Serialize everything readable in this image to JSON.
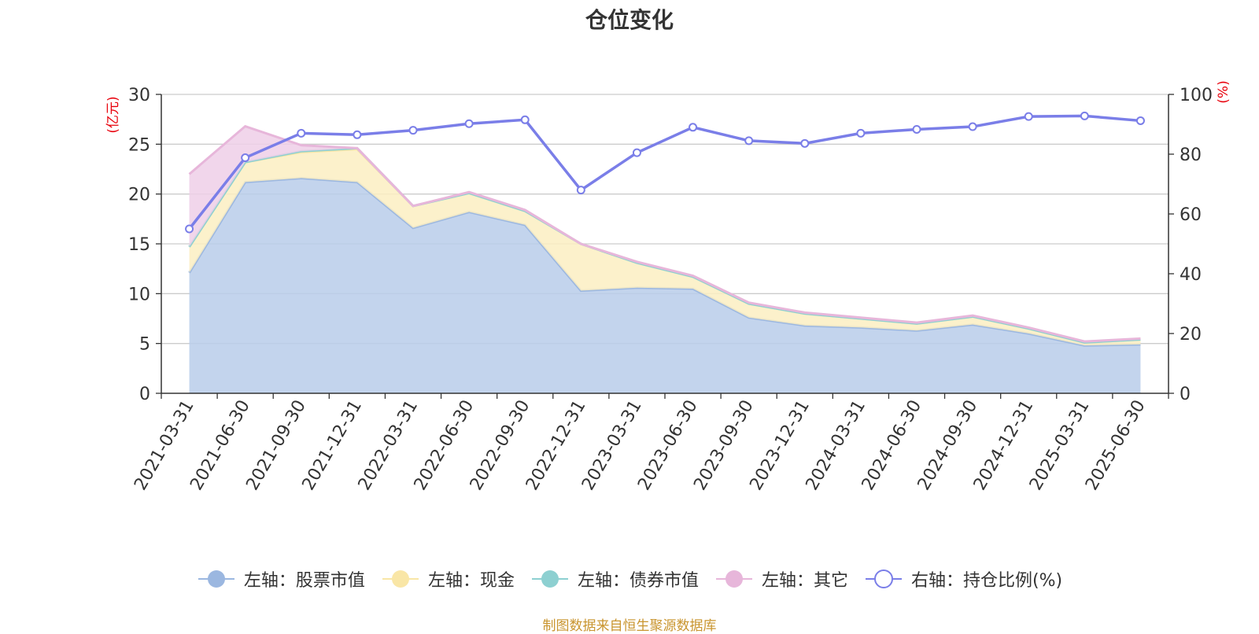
{
  "chart_data": {
    "type": "area",
    "title": "仓位变化",
    "left_axis_unit": "(亿元)",
    "right_axis_unit": "(%)",
    "ylim_left": [
      0,
      30
    ],
    "yticks_left": [
      0,
      5,
      10,
      15,
      20,
      25,
      30
    ],
    "ylim_right": [
      0,
      100
    ],
    "yticks_right": [
      0,
      20,
      40,
      60,
      80,
      100
    ],
    "grid": true,
    "legend_position": "bottom",
    "categories": [
      "2021-03-31",
      "2021-06-30",
      "2021-09-30",
      "2021-12-31",
      "2022-03-31",
      "2022-06-30",
      "2022-09-30",
      "2022-12-31",
      "2023-03-31",
      "2023-06-30",
      "2023-09-30",
      "2023-12-31",
      "2024-03-31",
      "2024-06-30",
      "2024-09-30",
      "2024-12-31",
      "2025-03-31",
      "2025-06-30"
    ],
    "series": [
      {
        "name": "左轴：股票市值",
        "axis": "left",
        "kind": "stacked-area",
        "color": "#9bb7e0",
        "fill": "#b8cdea",
        "values": [
          12.1,
          21.2,
          21.6,
          21.2,
          16.6,
          18.2,
          16.9,
          10.3,
          10.6,
          10.5,
          7.6,
          6.8,
          6.6,
          6.3,
          6.9,
          6.0,
          4.8,
          4.9
        ]
      },
      {
        "name": "左轴：现金",
        "axis": "left",
        "kind": "stacked-area",
        "color": "#f9e6a6",
        "fill": "#fbefc2",
        "values": [
          2.6,
          2.0,
          2.6,
          3.3,
          2.2,
          1.9,
          1.4,
          4.7,
          2.5,
          1.2,
          1.4,
          1.2,
          0.9,
          0.7,
          0.8,
          0.5,
          0.3,
          0.5
        ]
      },
      {
        "name": "左轴：债券市值",
        "axis": "left",
        "kind": "stacked-area",
        "color": "#8dd0d1",
        "fill": "#a6dcdc",
        "values": [
          0,
          0,
          0.1,
          0.1,
          0,
          0,
          0,
          0,
          0,
          0,
          0,
          0,
          0,
          0,
          0,
          0,
          0,
          0
        ]
      },
      {
        "name": "左轴：其它",
        "axis": "left",
        "kind": "stacked-area",
        "color": "#e7b6da",
        "fill": "#efcfe7",
        "values": [
          7.3,
          3.6,
          0.6,
          0,
          0,
          0.1,
          0.1,
          0,
          0.1,
          0.1,
          0.1,
          0.1,
          0.1,
          0.1,
          0.1,
          0.1,
          0.1,
          0.1
        ]
      },
      {
        "name": "右轴：持仓比例(%)",
        "axis": "right",
        "kind": "line",
        "color": "#7a7ee8",
        "values": [
          55.0,
          78.8,
          87.0,
          86.5,
          88.0,
          90.2,
          91.5,
          68.0,
          80.5,
          89.0,
          84.5,
          83.6,
          87.0,
          88.3,
          89.2,
          92.6,
          92.8,
          91.2
        ]
      }
    ]
  },
  "source_note": "制图数据来自恒生聚源数据库"
}
